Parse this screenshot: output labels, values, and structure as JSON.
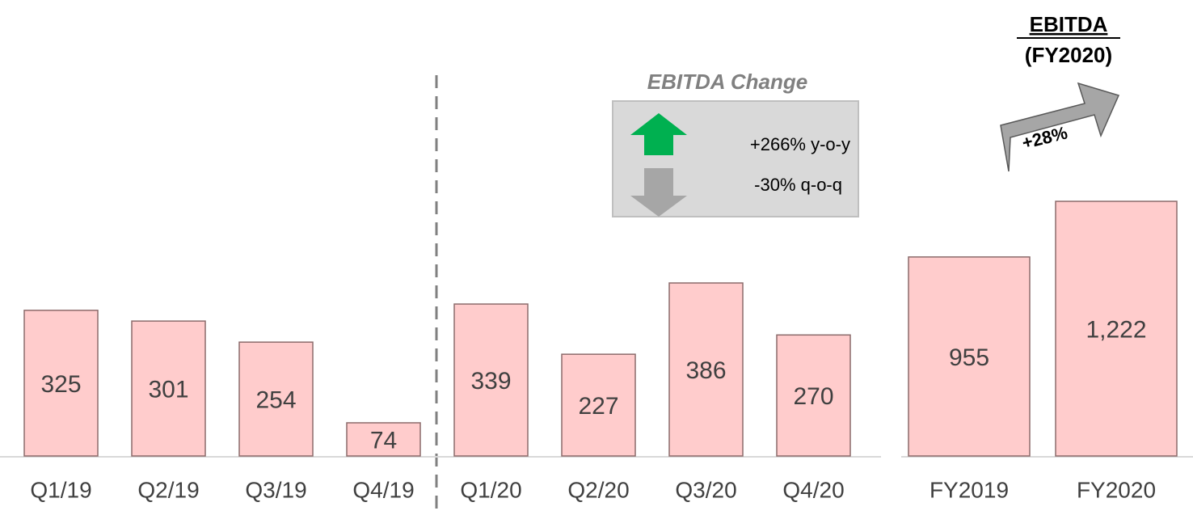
{
  "chart_data": [
    {
      "type": "bar",
      "categories": [
        "Q1/19",
        "Q2/19",
        "Q3/19",
        "Q4/19",
        "Q1/20",
        "Q2/20",
        "Q3/20",
        "Q4/20"
      ],
      "values": [
        325,
        301,
        254,
        74,
        339,
        227,
        386,
        270
      ],
      "color": "#ffcccc",
      "annotations": {
        "title": "EBITDA Change",
        "up": "+266% y-o-y",
        "down": "-30% q-o-q"
      }
    },
    {
      "type": "bar",
      "categories": [
        "FY2019",
        "FY2020"
      ],
      "values": [
        955,
        1222
      ],
      "value_labels": [
        "955",
        "1,222"
      ],
      "color": "#ffcccc",
      "annotations": {
        "title": "EBITDA",
        "subtitle": "(FY2020)",
        "growth": "+28%"
      }
    }
  ]
}
